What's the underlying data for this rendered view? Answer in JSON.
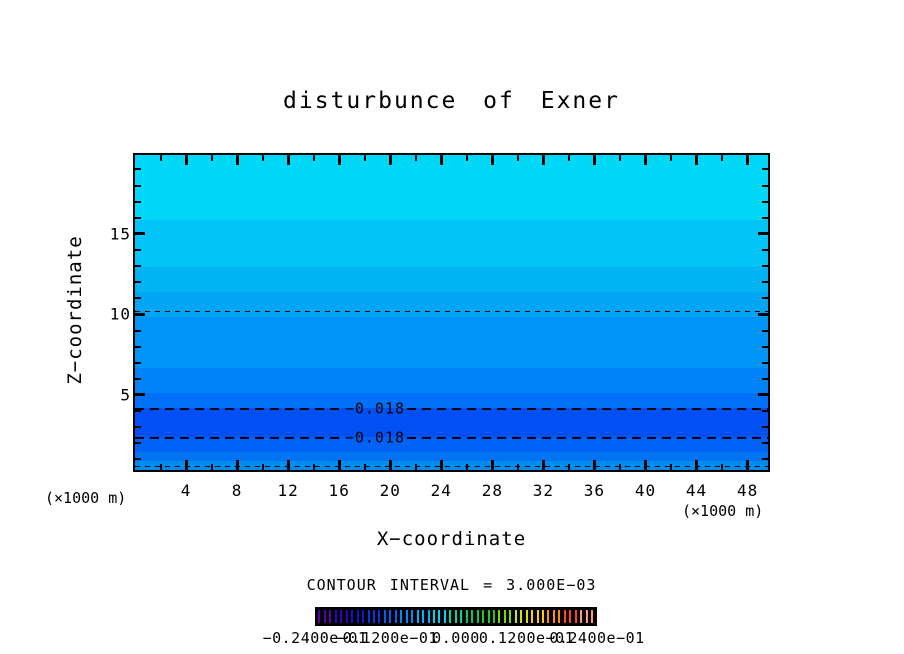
{
  "chart_data": {
    "type": "heatmap",
    "subtype": "filled-contour",
    "title": "disturbunce of Exner",
    "xlabel": "X−coordinate",
    "ylabel": "Z−coordinate",
    "x_unit_label": "(×1000 m)",
    "y_unit_label": "(×1000 m)",
    "x_range": [
      0,
      49.6
    ],
    "y_range": [
      0.34,
      19.9
    ],
    "grid": false,
    "contour_interval": 0.003,
    "contour_interval_label": "CONTOUR INTERVAL = 3.000E−03",
    "x_ticks_major": [
      4,
      8,
      12,
      16,
      20,
      24,
      28,
      32,
      36,
      40,
      44,
      48
    ],
    "x_ticks_minor": [
      2,
      6,
      10,
      14,
      18,
      22,
      26,
      30,
      34,
      38,
      42,
      46
    ],
    "y_ticks_major": [
      5,
      10,
      15
    ],
    "y_ticks_minor": [
      1,
      2,
      3,
      4,
      6,
      7,
      8,
      9,
      11,
      12,
      13,
      14,
      16,
      17,
      18,
      19
    ],
    "fill_bands": [
      {
        "z_from": 15.87,
        "z_to": 19.9,
        "value_range": [
          -0.003,
          0.0
        ],
        "color": "#00d8f8"
      },
      {
        "z_from": 12.95,
        "z_to": 15.87,
        "value_range": [
          -0.006,
          -0.003
        ],
        "color": "#00c4f8"
      },
      {
        "z_from": 11.4,
        "z_to": 12.95,
        "value_range": [
          -0.009,
          -0.006
        ],
        "color": "#00b4f4"
      },
      {
        "z_from": 9.84,
        "z_to": 11.4,
        "value_range": [
          -0.012,
          -0.009
        ],
        "color": "#00a6f4"
      },
      {
        "z_from": 6.67,
        "z_to": 9.84,
        "value_range": [
          -0.015,
          -0.012
        ],
        "color": "#0094f8"
      },
      {
        "z_from": 5.13,
        "z_to": 6.67,
        "value_range": [
          -0.015,
          -0.012
        ],
        "color": "#0082f8"
      },
      {
        "z_from": 4.2,
        "z_to": 5.13,
        "value_range": [
          -0.018,
          -0.015
        ],
        "color": "#0070f8"
      },
      {
        "z_from": 2.4,
        "z_to": 4.2,
        "value_range": [
          -0.021,
          -0.018
        ],
        "color": "#0050f4"
      },
      {
        "z_from": 1.45,
        "z_to": 2.4,
        "value_range": [
          -0.018,
          -0.015
        ],
        "color": "#0062f6"
      },
      {
        "z_from": 0.9,
        "z_to": 1.45,
        "value_range": [
          -0.015,
          -0.012
        ],
        "color": "#0074f2"
      },
      {
        "z_from": 0.34,
        "z_to": 0.9,
        "value_range": [
          -0.012,
          -0.009
        ],
        "color": "#008cee"
      }
    ],
    "contour_lines": [
      {
        "z": 10.2,
        "value": -0.009,
        "style": "thin-dashed",
        "label": null,
        "label_x_range": null
      },
      {
        "z": 4.2,
        "value": -0.018,
        "style": "thick-dashed",
        "label": "−0.018",
        "label_x_range": [
          16.3,
          21.3
        ]
      },
      {
        "z": 2.4,
        "value": -0.018,
        "style": "thick-dashed",
        "label": "−0.018",
        "label_x_range": [
          16.3,
          21.3
        ]
      },
      {
        "z": 0.59,
        "value": -0.009,
        "style": "thin-dashed",
        "label": null,
        "label_x_range": null
      }
    ],
    "colorbar": {
      "min": -0.024,
      "max": 0.024,
      "tick_labels": [
        "−0.2400e−01",
        "−0.1200e−01",
        "0.000",
        "0.1200e−01",
        "0.2400e−01"
      ],
      "stripes_per_color": 3,
      "colors": [
        "#5a00a8",
        "#3000c8",
        "#0b16d8",
        "#0038e8",
        "#0060f8",
        "#0088ff",
        "#00b0ff",
        "#00d4f0",
        "#00d8a8",
        "#00cc60",
        "#28c818",
        "#80d800",
        "#d8e000",
        "#ffcc00",
        "#ff9000",
        "#ff4818",
        "#ff9488"
      ]
    }
  }
}
